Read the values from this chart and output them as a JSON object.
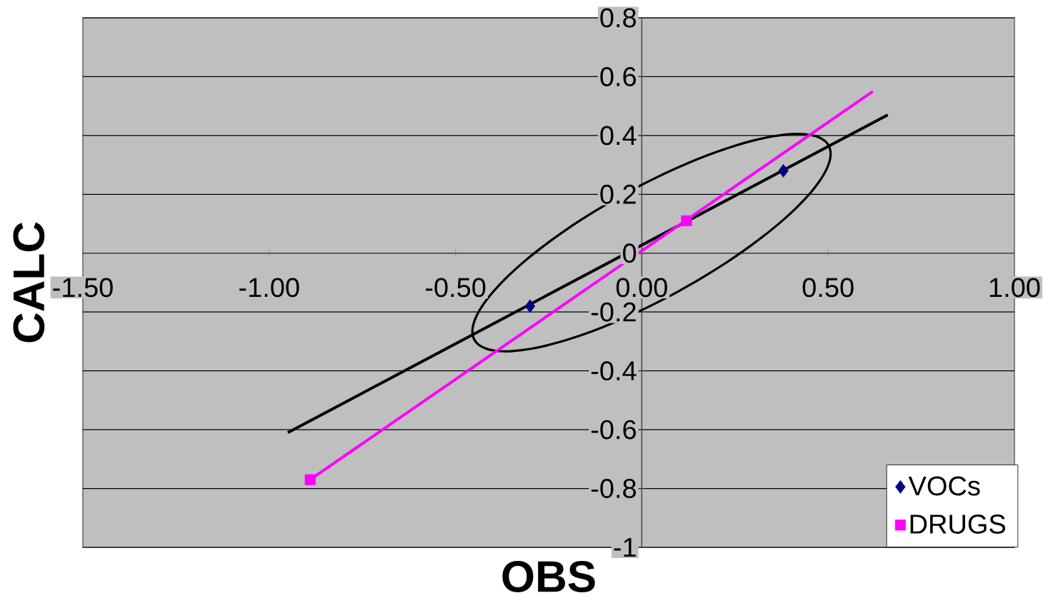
{
  "chart_data": {
    "type": "scatter",
    "xlabel": "OBS",
    "ylabel": "CALC",
    "xlim": [
      -1.5,
      1.0
    ],
    "ylim": [
      -1,
      0.8
    ],
    "xticks": [
      {
        "value": -1.5,
        "label": "-1.50"
      },
      {
        "value": -1.0,
        "label": "-1.00"
      },
      {
        "value": -0.5,
        "label": "-0.50"
      },
      {
        "value": 0,
        "label": "0.00"
      },
      {
        "value": 0.5,
        "label": "0.50"
      },
      {
        "value": 1.0,
        "label": "1.00"
      }
    ],
    "yticks": [
      -1,
      -0.8,
      -0.6,
      -0.4,
      -0.2,
      0,
      0.2,
      0.4,
      0.6,
      0.8
    ],
    "grid": "y",
    "legend": "bottom right",
    "series": [
      {
        "type": "line",
        "color": "#000000",
        "x": [
          -0.95,
          0.66
        ],
        "values": [
          -0.61,
          0.47
        ]
      },
      {
        "type": "line",
        "color": "#ff00ff",
        "x": [
          -0.89,
          0.62
        ],
        "values": [
          -0.77,
          0.55
        ]
      },
      {
        "name": "VOCs",
        "color": "#000080",
        "marker": "diamond",
        "x": [
          -0.3,
          0.38
        ],
        "values": [
          -0.18,
          0.28
        ]
      },
      {
        "name": "DRUGS",
        "color": "#ff00ff",
        "marker": "square",
        "x": [
          -0.89,
          0.12
        ],
        "values": [
          -0.77,
          0.11
        ]
      }
    ]
  }
}
